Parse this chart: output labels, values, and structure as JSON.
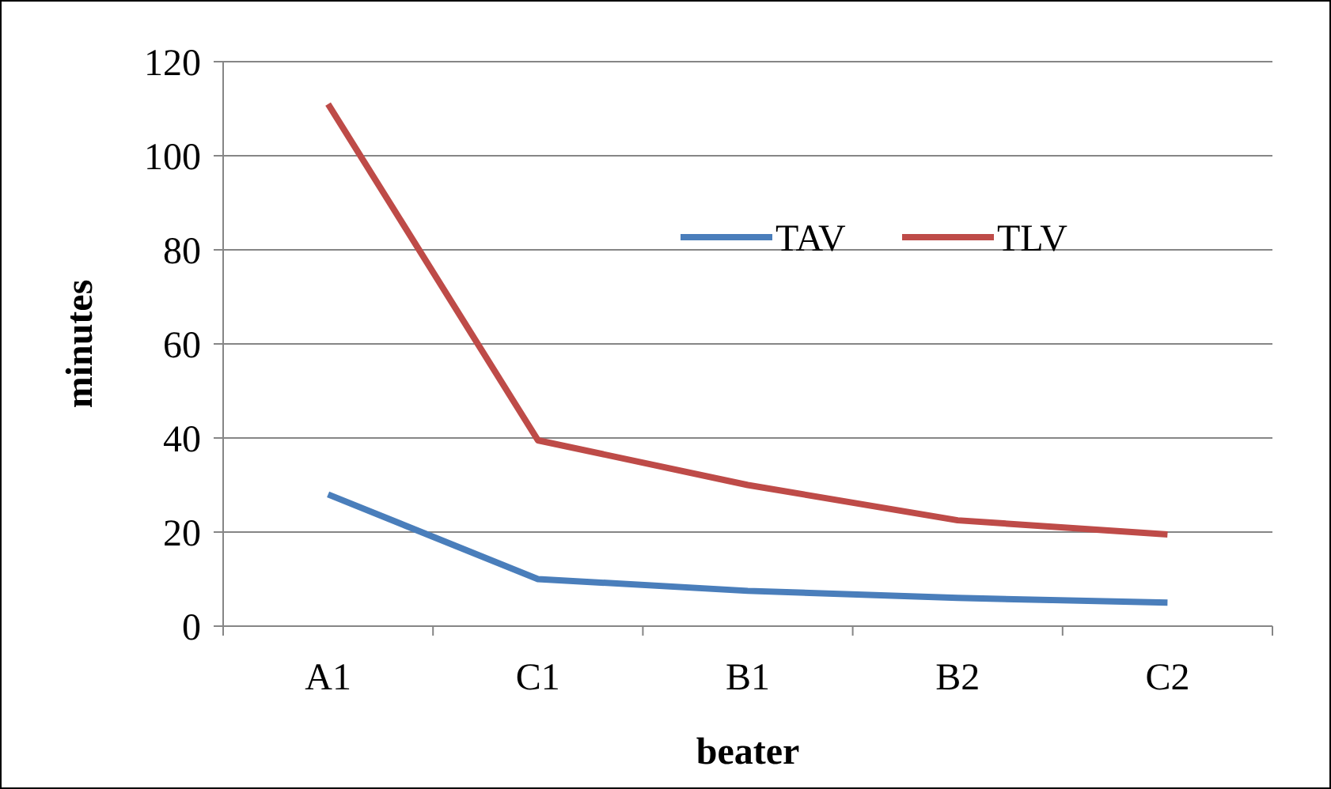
{
  "chart_data": {
    "type": "line",
    "xlabel": "beater",
    "ylabel": "minutes",
    "categories": [
      "A1",
      "C1",
      "B1",
      "B2",
      "C2"
    ],
    "series": [
      {
        "name": "TAV",
        "color": "#4a7ebb",
        "values": [
          28,
          10,
          7.5,
          6,
          5
        ]
      },
      {
        "name": "TLV",
        "color": "#be4b48",
        "values": [
          111,
          39.5,
          30,
          22.5,
          19.5
        ]
      }
    ],
    "ylim": [
      0,
      120
    ],
    "yticks": [
      0,
      20,
      40,
      60,
      80,
      100,
      120
    ],
    "grid": "y",
    "legend": "top right",
    "marker": "none",
    "line_style": "solid"
  }
}
